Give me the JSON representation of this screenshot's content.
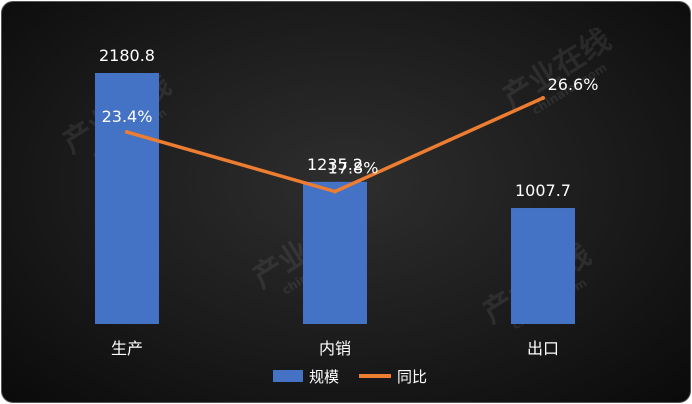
{
  "chart_data": {
    "type": "bar",
    "categories": [
      "生产",
      "内销",
      "出口"
    ],
    "series": [
      {
        "name": "规模",
        "type": "bar",
        "values": [
          2180.8,
          1235.2,
          1007.7
        ],
        "labels": [
          "2180.8",
          "1235.2",
          "1007.7"
        ],
        "color": "#4472C4"
      },
      {
        "name": "同比",
        "type": "line",
        "values": [
          23.4,
          17.8,
          26.6
        ],
        "labels": [
          "23.4%",
          "17.8%",
          "26.6%"
        ],
        "color": "#ED7D31"
      }
    ],
    "title": "",
    "xlabel": "",
    "ylabel": "",
    "legend_position": "bottom",
    "grid": false
  },
  "watermark": {
    "text": "产业在线",
    "subtext": "chinaiol.com"
  }
}
